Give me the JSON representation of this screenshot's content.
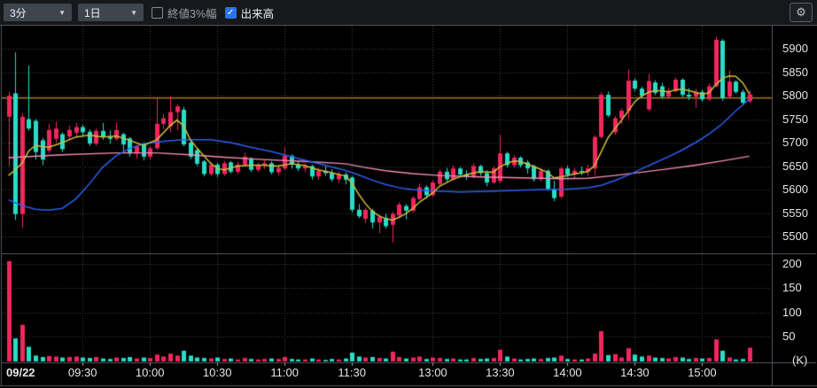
{
  "toolbar": {
    "interval_select": {
      "value": "3分"
    },
    "range_select": {
      "value": "1日"
    },
    "checkbox_close_band": {
      "label": "終値3%幅",
      "checked": false
    },
    "checkbox_volume": {
      "label": "出来高",
      "checked": true
    }
  },
  "icons": {
    "chevron_down": "▼",
    "check": "✓",
    "gear": "⚙"
  },
  "chart_data": {
    "type": "candlestick_with_volume",
    "date_label": "09/22",
    "price_axis_ticks": [
      5900,
      5850,
      5800,
      5750,
      5700,
      5650,
      5600,
      5550,
      5500
    ],
    "volume_axis_ticks": [
      200,
      150,
      100,
      50
    ],
    "volume_unit": "(K)",
    "time_axis_labels": [
      {
        "i": 11,
        "t": "09:30"
      },
      {
        "i": 21,
        "t": "10:00"
      },
      {
        "i": 31,
        "t": "10:30"
      },
      {
        "i": 41,
        "t": "11:00"
      },
      {
        "i": 51,
        "t": "11:30"
      },
      {
        "i": 63,
        "t": "13:00"
      },
      {
        "i": 73,
        "t": "13:30"
      },
      {
        "i": 83,
        "t": "14:00"
      },
      {
        "i": 93,
        "t": "14:30"
      },
      {
        "i": 103,
        "t": "15:00"
      }
    ],
    "ylim": [
      5464,
      5949
    ],
    "volume_ylim": [
      0,
      218
    ],
    "reference_line": 5795,
    "grid": "dotted",
    "candles": [
      [
        5755,
        5808,
        5650,
        5800,
        205
      ],
      [
        5805,
        5892,
        5535,
        5548,
        47
      ],
      [
        5548,
        5762,
        5518,
        5755,
        75
      ],
      [
        5750,
        5864,
        5725,
        5730,
        30
      ],
      [
        5746,
        5750,
        5664,
        5680,
        12
      ],
      [
        5705,
        5710,
        5652,
        5664,
        9
      ],
      [
        5683,
        5740,
        5678,
        5727,
        11
      ],
      [
        5708,
        5745,
        5700,
        5730,
        10
      ],
      [
        5718,
        5722,
        5680,
        5686,
        8
      ],
      [
        5713,
        5736,
        5706,
        5727,
        9
      ],
      [
        5721,
        5742,
        5712,
        5733,
        10
      ],
      [
        5733,
        5738,
        5714,
        5722,
        8
      ],
      [
        5723,
        5728,
        5693,
        5698,
        7
      ],
      [
        5698,
        5730,
        5694,
        5725,
        9
      ],
      [
        5725,
        5742,
        5706,
        5712,
        6
      ],
      [
        5712,
        5726,
        5698,
        5708,
        5
      ],
      [
        5708,
        5742,
        5704,
        5727,
        8
      ],
      [
        5718,
        5721,
        5677,
        5696,
        7
      ],
      [
        5709,
        5712,
        5670,
        5677,
        9
      ],
      [
        5677,
        5695,
        5666,
        5692,
        6
      ],
      [
        5698,
        5701,
        5662,
        5670,
        8
      ],
      [
        5670,
        5692,
        5664,
        5688,
        7
      ],
      [
        5688,
        5795,
        5684,
        5740,
        14
      ],
      [
        5740,
        5761,
        5728,
        5752,
        10
      ],
      [
        5735,
        5799,
        5722,
        5765,
        16
      ],
      [
        5765,
        5782,
        5726,
        5777,
        12
      ],
      [
        5770,
        5776,
        5692,
        5696,
        22
      ],
      [
        5700,
        5705,
        5665,
        5670,
        12
      ],
      [
        5684,
        5687,
        5650,
        5655,
        8
      ],
      [
        5660,
        5663,
        5628,
        5633,
        7
      ],
      [
        5633,
        5658,
        5629,
        5653,
        6
      ],
      [
        5653,
        5657,
        5627,
        5633,
        8
      ],
      [
        5633,
        5661,
        5629,
        5656,
        5
      ],
      [
        5658,
        5661,
        5634,
        5638,
        6
      ],
      [
        5638,
        5659,
        5633,
        5653,
        4
      ],
      [
        5653,
        5678,
        5648,
        5670,
        7
      ],
      [
        5666,
        5669,
        5637,
        5642,
        5
      ],
      [
        5642,
        5657,
        5637,
        5651,
        4
      ],
      [
        5651,
        5663,
        5644,
        5656,
        5
      ],
      [
        5656,
        5660,
        5632,
        5637,
        6
      ],
      [
        5637,
        5652,
        5630,
        5646,
        5
      ],
      [
        5645,
        5690,
        5641,
        5672,
        9
      ],
      [
        5672,
        5675,
        5644,
        5653,
        5
      ],
      [
        5653,
        5661,
        5639,
        5645,
        4
      ],
      [
        5645,
        5656,
        5637,
        5650,
        4
      ],
      [
        5650,
        5653,
        5621,
        5628,
        6
      ],
      [
        5628,
        5646,
        5621,
        5640,
        4
      ],
      [
        5640,
        5649,
        5629,
        5635,
        3
      ],
      [
        5635,
        5643,
        5617,
        5622,
        5
      ],
      [
        5622,
        5639,
        5614,
        5632,
        4
      ],
      [
        5632,
        5637,
        5611,
        5621,
        6
      ],
      [
        5626,
        5629,
        5551,
        5557,
        18
      ],
      [
        5557,
        5569,
        5539,
        5543,
        10
      ],
      [
        5538,
        5561,
        5529,
        5557,
        8
      ],
      [
        5555,
        5559,
        5517,
        5530,
        9
      ],
      [
        5530,
        5546,
        5507,
        5542,
        7
      ],
      [
        5540,
        5549,
        5517,
        5522,
        6
      ],
      [
        5525,
        5553,
        5487,
        5548,
        20
      ],
      [
        5545,
        5573,
        5539,
        5568,
        9
      ],
      [
        5565,
        5569,
        5537,
        5555,
        6
      ],
      [
        5555,
        5586,
        5551,
        5582,
        8
      ],
      [
        5580,
        5613,
        5577,
        5605,
        10
      ],
      [
        5605,
        5609,
        5581,
        5588,
        5
      ],
      [
        5588,
        5619,
        5584,
        5615,
        8
      ],
      [
        5612,
        5643,
        5607,
        5638,
        7
      ],
      [
        5638,
        5646,
        5617,
        5622,
        5
      ],
      [
        5622,
        5651,
        5619,
        5645,
        6
      ],
      [
        5645,
        5649,
        5627,
        5632,
        4
      ],
      [
        5632,
        5641,
        5621,
        5628,
        4
      ],
      [
        5628,
        5656,
        5624,
        5650,
        7
      ],
      [
        5650,
        5653,
        5629,
        5635,
        5
      ],
      [
        5635,
        5641,
        5607,
        5615,
        6
      ],
      [
        5615,
        5649,
        5611,
        5645,
        7
      ],
      [
        5618,
        5717,
        5614,
        5677,
        24
      ],
      [
        5677,
        5681,
        5647,
        5652,
        10
      ],
      [
        5652,
        5673,
        5647,
        5668,
        6
      ],
      [
        5668,
        5671,
        5647,
        5652,
        4
      ],
      [
        5658,
        5663,
        5634,
        5645,
        5
      ],
      [
        5650,
        5653,
        5617,
        5622,
        6
      ],
      [
        5622,
        5646,
        5617,
        5640,
        5
      ],
      [
        5640,
        5643,
        5597,
        5602,
        7
      ],
      [
        5602,
        5619,
        5575,
        5582,
        8
      ],
      [
        5585,
        5649,
        5581,
        5645,
        12
      ],
      [
        5645,
        5651,
        5627,
        5632,
        5
      ],
      [
        5632,
        5646,
        5624,
        5640,
        4
      ],
      [
        5640,
        5649,
        5631,
        5638,
        4
      ],
      [
        5638,
        5653,
        5629,
        5645,
        6
      ],
      [
        5645,
        5716,
        5631,
        5712,
        16
      ],
      [
        5712,
        5807,
        5709,
        5802,
        62
      ],
      [
        5802,
        5809,
        5754,
        5758,
        13
      ],
      [
        5722,
        5756,
        5717,
        5752,
        15
      ],
      [
        5752,
        5773,
        5739,
        5768,
        8
      ],
      [
        5768,
        5856,
        5751,
        5832,
        27
      ],
      [
        5832,
        5837,
        5809,
        5815,
        14
      ],
      [
        5815,
        5819,
        5794,
        5800,
        10
      ],
      [
        5771,
        5846,
        5767,
        5831,
        12
      ],
      [
        5828,
        5833,
        5801,
        5806,
        8
      ],
      [
        5820,
        5827,
        5793,
        5798,
        7
      ],
      [
        5798,
        5816,
        5795,
        5810,
        6
      ],
      [
        5810,
        5839,
        5807,
        5834,
        9
      ],
      [
        5834,
        5837,
        5797,
        5802,
        8
      ],
      [
        5802,
        5816,
        5791,
        5798,
        5
      ],
      [
        5798,
        5815,
        5774,
        5808,
        7
      ],
      [
        5808,
        5813,
        5787,
        5792,
        6
      ],
      [
        5792,
        5826,
        5789,
        5820,
        7
      ],
      [
        5820,
        5926,
        5817,
        5919,
        45
      ],
      [
        5917,
        5921,
        5789,
        5795,
        22
      ],
      [
        5798,
        5854,
        5794,
        5830,
        8
      ],
      [
        5830,
        5833,
        5804,
        5808,
        4
      ],
      [
        5808,
        5813,
        5779,
        5785,
        5
      ],
      [
        5788,
        5811,
        5784,
        5803,
        28
      ]
    ],
    "overlays": {
      "ma_fast": {
        "color": "#cbbf3e",
        "points": [
          [
            0,
            5630
          ],
          [
            1,
            5642
          ],
          [
            2,
            5656
          ],
          [
            3,
            5682
          ],
          [
            4,
            5694
          ],
          [
            6,
            5690
          ],
          [
            8,
            5700
          ],
          [
            10,
            5712
          ],
          [
            12,
            5716
          ],
          [
            14,
            5712
          ],
          [
            16,
            5714
          ],
          [
            18,
            5705
          ],
          [
            20,
            5694
          ],
          [
            22,
            5706
          ],
          [
            24,
            5736
          ],
          [
            25,
            5748
          ],
          [
            26,
            5736
          ],
          [
            27,
            5706
          ],
          [
            28,
            5688
          ],
          [
            29,
            5672
          ],
          [
            30,
            5656
          ],
          [
            31,
            5645
          ],
          [
            32,
            5642
          ],
          [
            34,
            5650
          ],
          [
            36,
            5652
          ],
          [
            38,
            5652
          ],
          [
            40,
            5650
          ],
          [
            42,
            5655
          ],
          [
            44,
            5651
          ],
          [
            46,
            5642
          ],
          [
            48,
            5636
          ],
          [
            50,
            5629
          ],
          [
            51,
            5614
          ],
          [
            52,
            5590
          ],
          [
            53,
            5570
          ],
          [
            54,
            5554
          ],
          [
            55,
            5544
          ],
          [
            56,
            5538
          ],
          [
            57,
            5535
          ],
          [
            58,
            5541
          ],
          [
            59,
            5549
          ],
          [
            60,
            5559
          ],
          [
            61,
            5573
          ],
          [
            62,
            5583
          ],
          [
            63,
            5593
          ],
          [
            64,
            5607
          ],
          [
            66,
            5622
          ],
          [
            68,
            5632
          ],
          [
            70,
            5638
          ],
          [
            72,
            5637
          ],
          [
            73,
            5649
          ],
          [
            74,
            5656
          ],
          [
            75,
            5661
          ],
          [
            76,
            5660
          ],
          [
            78,
            5649
          ],
          [
            80,
            5637
          ],
          [
            81,
            5625
          ],
          [
            82,
            5627
          ],
          [
            84,
            5633
          ],
          [
            86,
            5638
          ],
          [
            87,
            5651
          ],
          [
            88,
            5680
          ],
          [
            89,
            5710
          ],
          [
            90,
            5729
          ],
          [
            91,
            5747
          ],
          [
            92,
            5767
          ],
          [
            93,
            5787
          ],
          [
            94,
            5799
          ],
          [
            95,
            5807
          ],
          [
            96,
            5811
          ],
          [
            97,
            5810
          ],
          [
            98,
            5808
          ],
          [
            99,
            5812
          ],
          [
            100,
            5814
          ],
          [
            101,
            5811
          ],
          [
            102,
            5807
          ],
          [
            103,
            5803
          ],
          [
            104,
            5806
          ],
          [
            105,
            5823
          ],
          [
            106,
            5837
          ],
          [
            107,
            5842
          ],
          [
            108,
            5841
          ],
          [
            109,
            5828
          ],
          [
            110,
            5804
          ]
        ]
      },
      "ma_slow": {
        "color": "#2e5ff0",
        "points": [
          [
            0,
            5578
          ],
          [
            2,
            5566
          ],
          [
            4,
            5558
          ],
          [
            6,
            5556
          ],
          [
            8,
            5560
          ],
          [
            10,
            5580
          ],
          [
            12,
            5612
          ],
          [
            14,
            5648
          ],
          [
            16,
            5672
          ],
          [
            18,
            5688
          ],
          [
            20,
            5697
          ],
          [
            23,
            5703
          ],
          [
            26,
            5706
          ],
          [
            30,
            5706
          ],
          [
            33,
            5700
          ],
          [
            36,
            5690
          ],
          [
            39,
            5681
          ],
          [
            42,
            5670
          ],
          [
            45,
            5659
          ],
          [
            48,
            5648
          ],
          [
            50,
            5641
          ],
          [
            52,
            5631
          ],
          [
            54,
            5620
          ],
          [
            56,
            5611
          ],
          [
            58,
            5604
          ],
          [
            60,
            5600
          ],
          [
            63,
            5597
          ],
          [
            67,
            5595
          ],
          [
            71,
            5596
          ],
          [
            75,
            5598
          ],
          [
            79,
            5600
          ],
          [
            83,
            5601
          ],
          [
            86,
            5604
          ],
          [
            88,
            5609
          ],
          [
            90,
            5619
          ],
          [
            92,
            5631
          ],
          [
            94,
            5644
          ],
          [
            96,
            5657
          ],
          [
            98,
            5670
          ],
          [
            100,
            5684
          ],
          [
            102,
            5700
          ],
          [
            104,
            5718
          ],
          [
            106,
            5740
          ],
          [
            108,
            5768
          ],
          [
            110,
            5792
          ]
        ]
      },
      "vwap": {
        "color": "#f18cb5",
        "points": [
          [
            0,
            5668
          ],
          [
            8,
            5674
          ],
          [
            16,
            5678
          ],
          [
            22,
            5678
          ],
          [
            27,
            5674
          ],
          [
            32,
            5669
          ],
          [
            38,
            5664
          ],
          [
            44,
            5660
          ],
          [
            50,
            5655
          ],
          [
            53,
            5647
          ],
          [
            56,
            5640
          ],
          [
            60,
            5634
          ],
          [
            64,
            5630
          ],
          [
            70,
            5627
          ],
          [
            76,
            5625
          ],
          [
            82,
            5623
          ],
          [
            86,
            5624
          ],
          [
            90,
            5630
          ],
          [
            94,
            5637
          ],
          [
            98,
            5644
          ],
          [
            102,
            5652
          ],
          [
            106,
            5661
          ],
          [
            110,
            5671
          ]
        ]
      }
    },
    "colors": {
      "up": "#f4265e",
      "down": "#29dcc7",
      "reference": "#c08c28",
      "grid": "#474747",
      "border": "#555a60",
      "background": "#000000",
      "accent_checkbox": "#2e72e8"
    }
  }
}
